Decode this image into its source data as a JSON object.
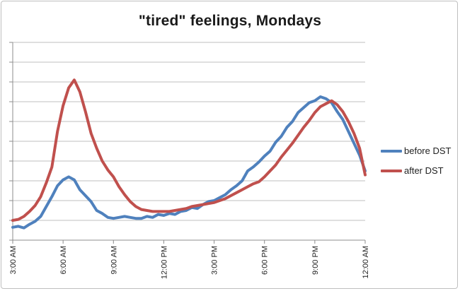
{
  "chart_data": {
    "type": "line",
    "title": "\"tired\" feelings, Mondays",
    "xlabel": "",
    "ylabel": "",
    "x": [
      "3:00 AM",
      "3:20 AM",
      "3:40 AM",
      "4:00 AM",
      "4:20 AM",
      "4:40 AM",
      "5:00 AM",
      "5:20 AM",
      "5:40 AM",
      "6:00 AM",
      "6:20 AM",
      "6:40 AM",
      "7:00 AM",
      "7:20 AM",
      "7:40 AM",
      "8:00 AM",
      "8:20 AM",
      "8:40 AM",
      "9:00 AM",
      "9:20 AM",
      "9:40 AM",
      "10:00 AM",
      "10:20 AM",
      "10:40 AM",
      "11:00 AM",
      "11:20 AM",
      "11:40 AM",
      "12:00 PM",
      "12:20 PM",
      "12:40 PM",
      "1:00 PM",
      "1:20 PM",
      "1:40 PM",
      "2:00 PM",
      "2:20 PM",
      "2:40 PM",
      "3:00 PM",
      "3:20 PM",
      "3:40 PM",
      "4:00 PM",
      "4:20 PM",
      "4:40 PM",
      "5:00 PM",
      "5:20 PM",
      "5:40 PM",
      "6:00 PM",
      "6:20 PM",
      "6:40 PM",
      "7:00 PM",
      "7:20 PM",
      "7:40 PM",
      "8:00 PM",
      "8:20 PM",
      "8:40 PM",
      "9:00 PM",
      "9:20 PM",
      "9:40 PM",
      "10:00 PM",
      "10:20 PM",
      "10:40 PM",
      "11:00 PM",
      "11:20 PM",
      "11:40 PM",
      "12:00 AM"
    ],
    "xticks": [
      "3:00 AM",
      "6:00 AM",
      "9:00 AM",
      "12:00 PM",
      "3:00 PM",
      "6:00 PM",
      "9:00 PM",
      "12:00 AM"
    ],
    "ylim": [
      0,
      10
    ],
    "y_ticks_count": 10,
    "grid": true,
    "legend_position": "right",
    "series": [
      {
        "name": "before DST",
        "color": "#4F81BD",
        "values": [
          0.65,
          0.7,
          0.62,
          0.8,
          0.95,
          1.2,
          1.7,
          2.2,
          2.75,
          3.05,
          3.2,
          3.05,
          2.55,
          2.25,
          1.95,
          1.5,
          1.35,
          1.15,
          1.1,
          1.15,
          1.2,
          1.15,
          1.1,
          1.1,
          1.2,
          1.15,
          1.3,
          1.25,
          1.35,
          1.3,
          1.45,
          1.5,
          1.65,
          1.6,
          1.8,
          1.95,
          2.0,
          2.15,
          2.3,
          2.55,
          2.75,
          3.0,
          3.5,
          3.7,
          3.95,
          4.25,
          4.5,
          4.95,
          5.25,
          5.7,
          6.0,
          6.45,
          6.7,
          6.95,
          7.05,
          7.25,
          7.15,
          6.95,
          6.5,
          6.1,
          5.5,
          4.9,
          4.3,
          3.5
        ]
      },
      {
        "name": "after DST",
        "color": "#C0504D",
        "values": [
          1.0,
          1.05,
          1.2,
          1.45,
          1.75,
          2.2,
          2.9,
          3.7,
          5.5,
          6.8,
          7.7,
          8.1,
          7.5,
          6.5,
          5.4,
          4.65,
          4.0,
          3.55,
          3.2,
          2.7,
          2.3,
          1.95,
          1.7,
          1.55,
          1.5,
          1.45,
          1.45,
          1.45,
          1.45,
          1.5,
          1.55,
          1.6,
          1.7,
          1.75,
          1.8,
          1.85,
          1.9,
          2.0,
          2.1,
          2.25,
          2.4,
          2.55,
          2.7,
          2.85,
          2.95,
          3.2,
          3.5,
          3.8,
          4.2,
          4.55,
          4.9,
          5.3,
          5.7,
          6.05,
          6.45,
          6.75,
          6.9,
          7.05,
          6.85,
          6.5,
          6.0,
          5.4,
          4.65,
          3.3
        ]
      }
    ]
  }
}
